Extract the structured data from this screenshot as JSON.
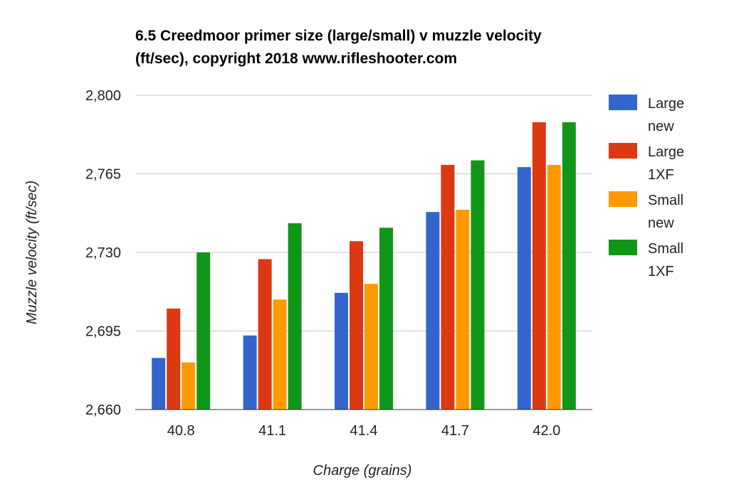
{
  "chart_data": {
    "type": "bar",
    "title_lines": [
      "6.5 Creedmoor primer size (large/small) v muzzle velocity",
      "(ft/sec), copyright 2018 www.rifleshooter.com"
    ],
    "xlabel": "Charge (grains)",
    "ylabel": "Muzzle velocity (ft/sec)",
    "categories": [
      "40.8",
      "41.1",
      "41.4",
      "41.7",
      "42.0"
    ],
    "ylim": [
      2660,
      2800
    ],
    "yticks": [
      2660,
      2695,
      2730,
      2765,
      2800
    ],
    "ytick_labels": [
      "2,660",
      "2,695",
      "2,730",
      "2,765",
      "2,800"
    ],
    "grid": true,
    "legend_position": "right",
    "series": [
      {
        "name": "Large new",
        "legend_lines": [
          "Large",
          "new"
        ],
        "color": "#3366cc",
        "values": [
          2683,
          2693,
          2712,
          2748,
          2768
        ]
      },
      {
        "name": "Large 1XF",
        "legend_lines": [
          "Large",
          "1XF"
        ],
        "color": "#dc3912",
        "values": [
          2705,
          2727,
          2735,
          2769,
          2788
        ]
      },
      {
        "name": "Small new",
        "legend_lines": [
          "Small",
          "new"
        ],
        "color": "#ff9900",
        "values": [
          2681,
          2709,
          2716,
          2749,
          2769
        ]
      },
      {
        "name": "Small 1XF",
        "legend_lines": [
          "Small",
          "1XF"
        ],
        "color": "#109618",
        "values": [
          2730,
          2743,
          2741,
          2771,
          2788
        ]
      }
    ]
  }
}
